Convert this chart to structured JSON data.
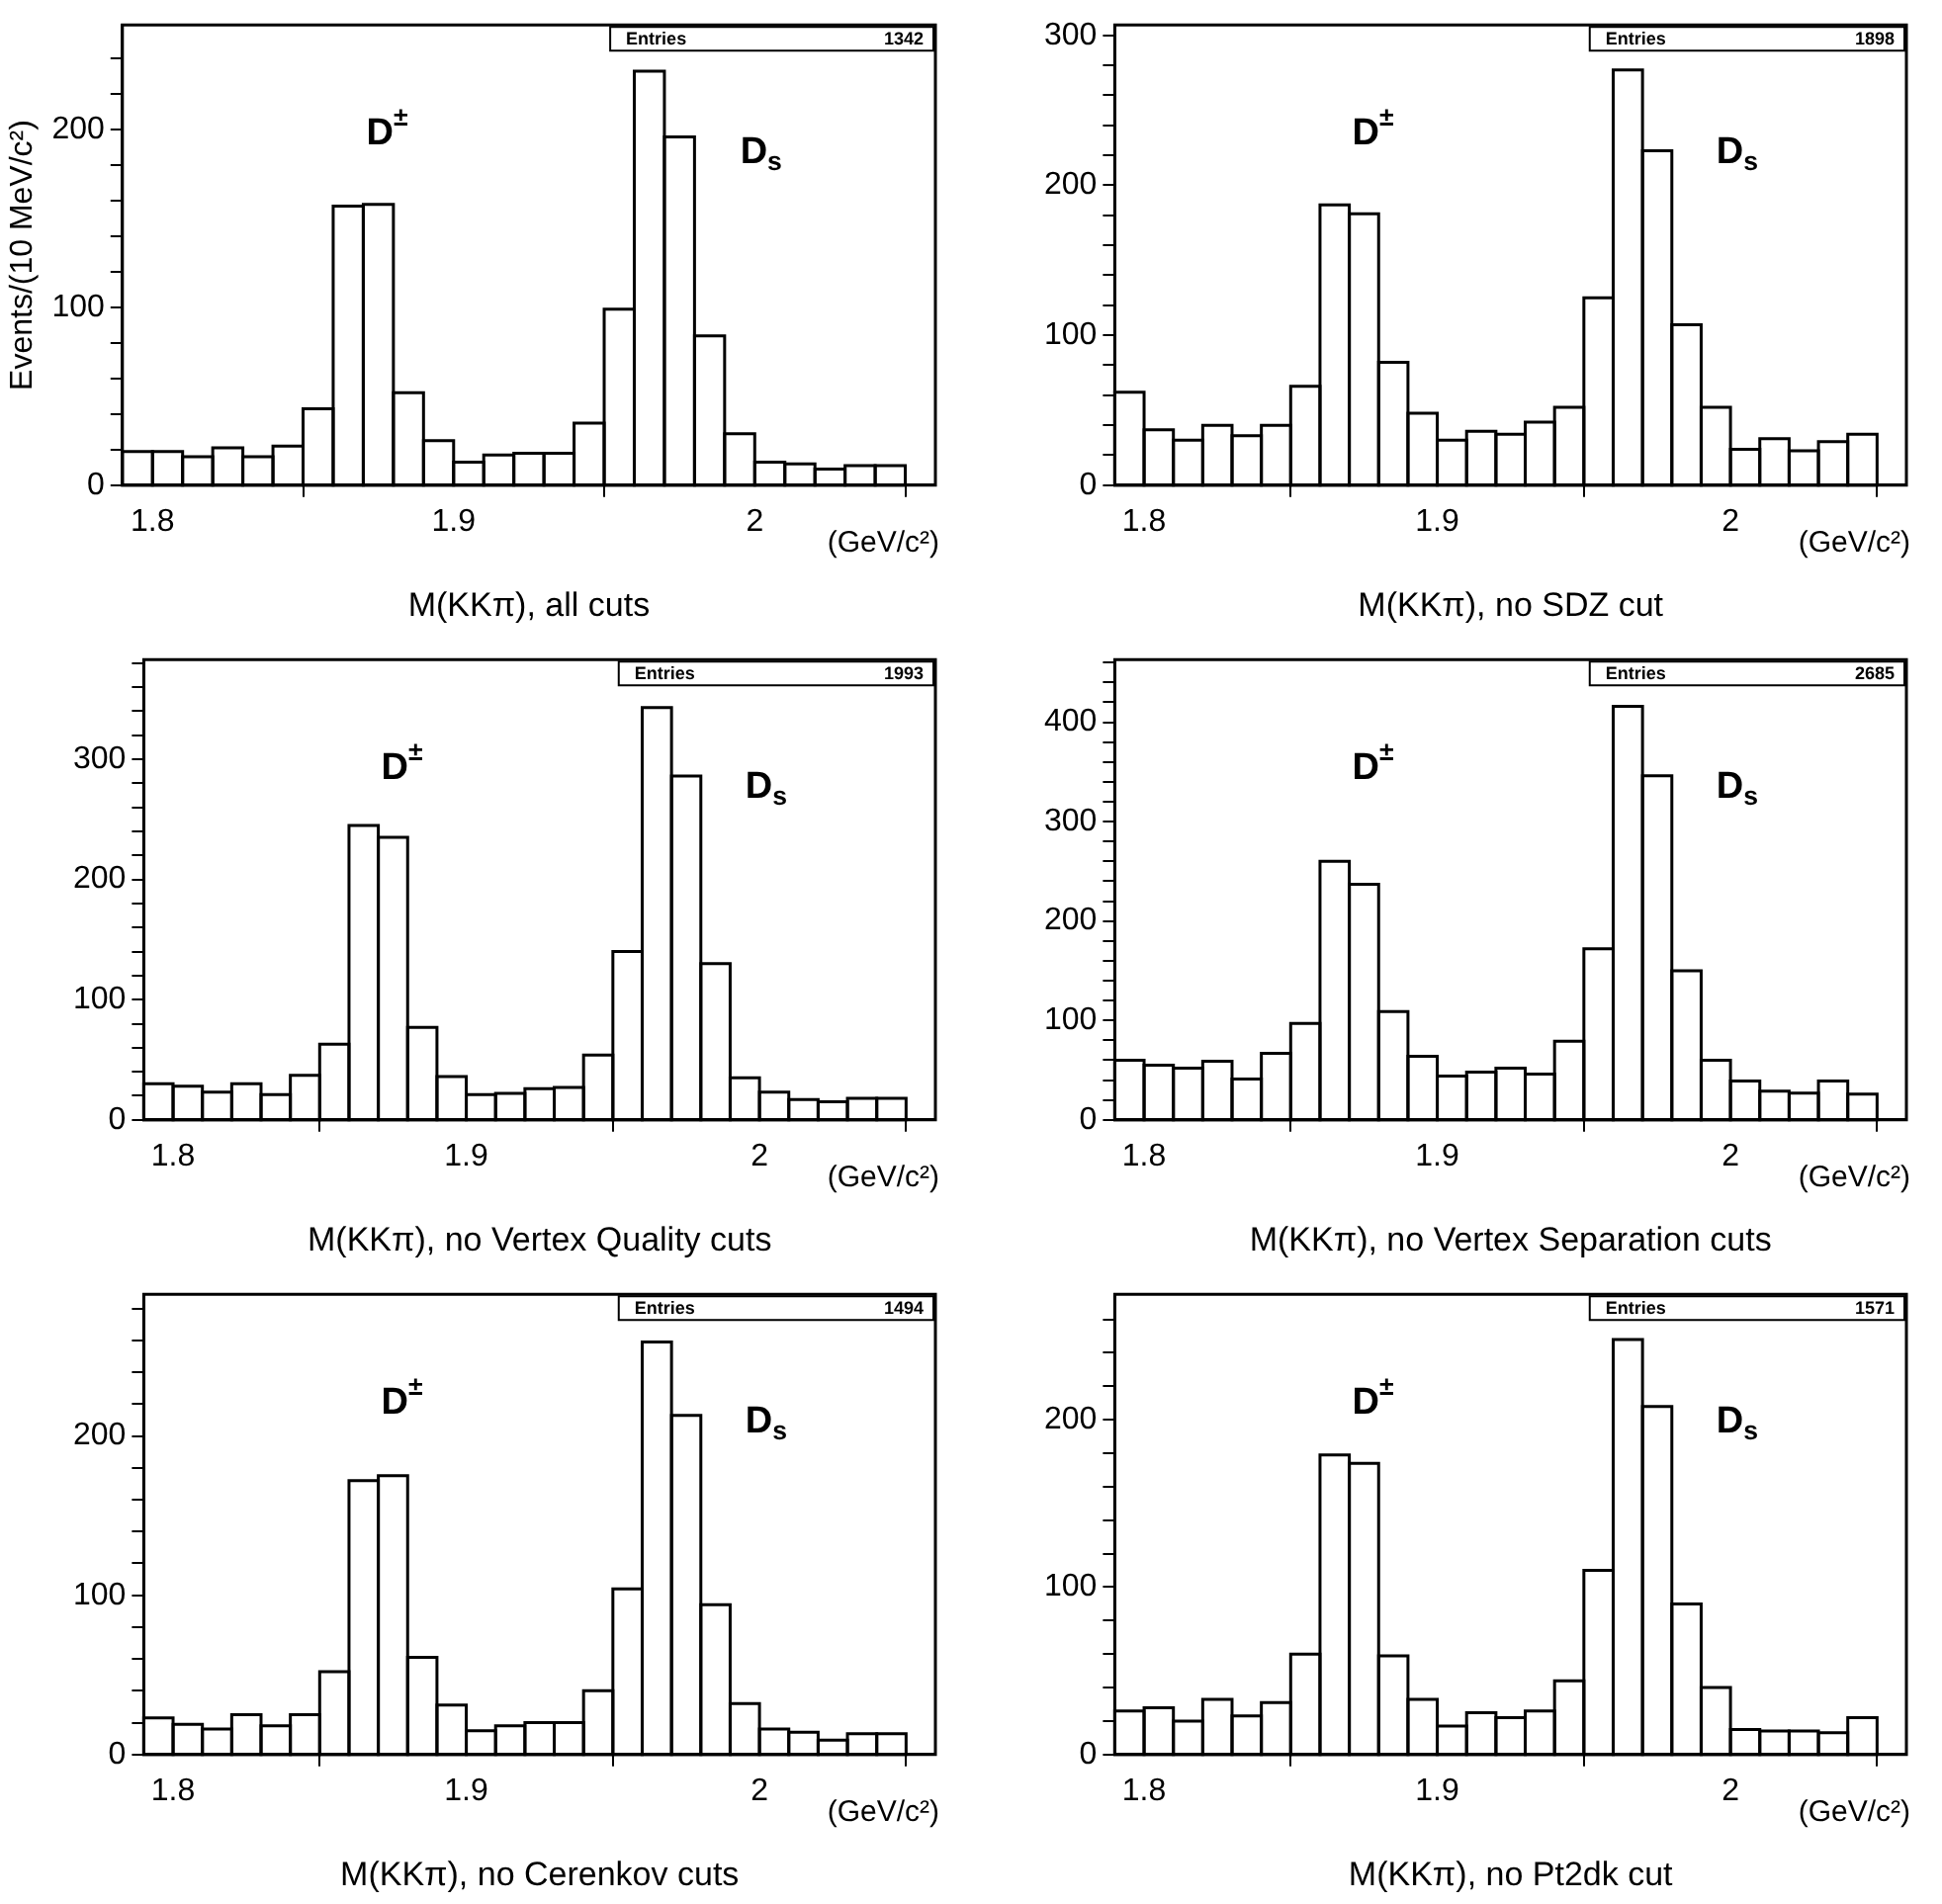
{
  "chart_data": [
    {
      "type": "histogram",
      "xlabel": "M(KKπ), all cuts",
      "ylabel": "Events/(10 MeV/c²)",
      "annotations": [
        "Entries",
        "1342",
        "(GeV/c²)",
        "D$^{±}$",
        "D$_{s}$"
      ],
      "color": "#000000",
      "bins": [
        1.79,
        1.8,
        1.81,
        1.82,
        1.83,
        1.84,
        1.85,
        1.86,
        1.87,
        1.88,
        1.89,
        1.9,
        1.91,
        1.92,
        1.93,
        1.94,
        1.95,
        1.96,
        1.97,
        1.98,
        1.99,
        2.0,
        2.01,
        2.02,
        2.03,
        2.04,
        2.05
      ],
      "values": [
        19,
        19,
        16,
        21,
        16,
        22,
        43,
        157,
        158,
        52,
        25,
        13,
        17,
        18,
        18,
        35,
        99,
        233,
        196,
        84,
        29,
        13,
        12,
        9,
        11,
        11
      ],
      "xlim": [
        1.79,
        2.06
      ],
      "xticks": [
        1.8,
        1.9,
        2
      ],
      "ylim": [
        0,
        259
      ],
      "yticks": [
        0,
        {
          "value": 20,
          "label": null
        },
        {
          "value": 40,
          "label": null
        },
        {
          "value": 60,
          "label": null
        },
        {
          "value": 80,
          "label": null
        },
        100,
        {
          "value": 120,
          "label": null
        },
        {
          "value": 140,
          "label": null
        },
        {
          "value": 160,
          "label": null
        },
        {
          "value": 180,
          "label": null
        },
        200,
        {
          "value": 220,
          "label": null
        },
        {
          "value": 240,
          "label": null
        }
      ]
    },
    {
      "type": "histogram",
      "xlabel": "M(KKπ), no SDZ cut",
      "annotations": [
        "Entries",
        "1898",
        "(GeV/c²)",
        "D$^{±}$",
        "D$_{s}$"
      ],
      "color": "#000000",
      "bins": [
        1.79,
        1.8,
        1.81,
        1.82,
        1.83,
        1.84,
        1.85,
        1.86,
        1.87,
        1.88,
        1.89,
        1.9,
        1.91,
        1.92,
        1.93,
        1.94,
        1.95,
        1.96,
        1.97,
        1.98,
        1.99,
        2.0,
        2.01,
        2.02,
        2.03,
        2.04,
        2.05
      ],
      "values": [
        62,
        37,
        30,
        40,
        33,
        40,
        66,
        187,
        181,
        82,
        48,
        30,
        36,
        34,
        42,
        52,
        125,
        277,
        223,
        107,
        52,
        24,
        31,
        23,
        29,
        34
      ],
      "xlim": [
        1.79,
        2.06
      ],
      "xticks": [
        1.8,
        1.9,
        2
      ],
      "ylim": [
        0,
        307
      ],
      "yticks": [
        0,
        {
          "value": 20,
          "label": null
        },
        {
          "value": 40,
          "label": null
        },
        {
          "value": 60,
          "label": null
        },
        {
          "value": 80,
          "label": null
        },
        100,
        {
          "value": 120,
          "label": null
        },
        {
          "value": 140,
          "label": null
        },
        {
          "value": 160,
          "label": null
        },
        {
          "value": 180,
          "label": null
        },
        200,
        {
          "value": 220,
          "label": null
        },
        {
          "value": 240,
          "label": null
        },
        {
          "value": 260,
          "label": null
        },
        {
          "value": 280,
          "label": null
        },
        300
      ]
    },
    {
      "type": "histogram",
      "xlabel": "M(KKπ), no Vertex Quality cuts",
      "annotations": [
        "Entries",
        "1993",
        "(GeV/c²)",
        "D$^{±}$",
        "D$_{s}$"
      ],
      "color": "#000000",
      "bins": [
        1.79,
        1.8,
        1.81,
        1.82,
        1.83,
        1.84,
        1.85,
        1.86,
        1.87,
        1.88,
        1.89,
        1.9,
        1.91,
        1.92,
        1.93,
        1.94,
        1.95,
        1.96,
        1.97,
        1.98,
        1.99,
        2.0,
        2.01,
        2.02,
        2.03,
        2.04,
        2.05
      ],
      "values": [
        30,
        28,
        23,
        30,
        21,
        37,
        63,
        245,
        235,
        77,
        36,
        21,
        22,
        26,
        27,
        54,
        140,
        343,
        286,
        130,
        35,
        23,
        17,
        15,
        18,
        18
      ],
      "xlim": [
        1.79,
        2.06
      ],
      "xticks": [
        1.8,
        1.9,
        2
      ],
      "ylim": [
        0,
        383
      ],
      "yticks": [
        0,
        {
          "value": 20,
          "label": null
        },
        {
          "value": 40,
          "label": null
        },
        {
          "value": 60,
          "label": null
        },
        {
          "value": 80,
          "label": null
        },
        100,
        {
          "value": 120,
          "label": null
        },
        {
          "value": 140,
          "label": null
        },
        {
          "value": 160,
          "label": null
        },
        {
          "value": 180,
          "label": null
        },
        200,
        {
          "value": 220,
          "label": null
        },
        {
          "value": 240,
          "label": null
        },
        {
          "value": 260,
          "label": null
        },
        {
          "value": 280,
          "label": null
        },
        300,
        {
          "value": 320,
          "label": null
        },
        {
          "value": 340,
          "label": null
        },
        {
          "value": 360,
          "label": null
        },
        {
          "value": 380,
          "label": null
        }
      ]
    },
    {
      "type": "histogram",
      "xlabel": "M(KKπ), no Vertex Separation cuts",
      "annotations": [
        "Entries",
        "2685",
        "(GeV/c²)",
        "D$^{±}$",
        "D$_{s}$"
      ],
      "color": "#000000",
      "bins": [
        1.79,
        1.8,
        1.81,
        1.82,
        1.83,
        1.84,
        1.85,
        1.86,
        1.87,
        1.88,
        1.89,
        1.9,
        1.91,
        1.92,
        1.93,
        1.94,
        1.95,
        1.96,
        1.97,
        1.98,
        1.99,
        2.0,
        2.01,
        2.02,
        2.03,
        2.04,
        2.05
      ],
      "values": [
        60,
        55,
        52,
        59,
        41,
        67,
        97,
        260,
        237,
        109,
        64,
        44,
        48,
        52,
        46,
        79,
        172,
        416,
        346,
        150,
        60,
        39,
        29,
        27,
        39,
        26
      ],
      "xlim": [
        1.79,
        2.06
      ],
      "xticks": [
        1.8,
        1.9,
        2
      ],
      "ylim": [
        0,
        463
      ],
      "yticks": [
        0,
        {
          "value": 20,
          "label": null
        },
        {
          "value": 40,
          "label": null
        },
        {
          "value": 60,
          "label": null
        },
        {
          "value": 80,
          "label": null
        },
        100,
        {
          "value": 120,
          "label": null
        },
        {
          "value": 140,
          "label": null
        },
        {
          "value": 160,
          "label": null
        },
        {
          "value": 180,
          "label": null
        },
        200,
        {
          "value": 220,
          "label": null
        },
        {
          "value": 240,
          "label": null
        },
        {
          "value": 260,
          "label": null
        },
        {
          "value": 280,
          "label": null
        },
        300,
        {
          "value": 320,
          "label": null
        },
        {
          "value": 340,
          "label": null
        },
        {
          "value": 360,
          "label": null
        },
        {
          "value": 380,
          "label": null
        },
        400,
        {
          "value": 420,
          "label": null
        },
        {
          "value": 440,
          "label": null
        },
        {
          "value": 460,
          "label": null
        }
      ]
    },
    {
      "type": "histogram",
      "xlabel": "M(KKπ), no Cerenkov cuts",
      "annotations": [
        "Entries",
        "1494",
        "(GeV/c²)",
        "D$^{±}$",
        "D$_{s}$"
      ],
      "color": "#000000",
      "bins": [
        1.79,
        1.8,
        1.81,
        1.82,
        1.83,
        1.84,
        1.85,
        1.86,
        1.87,
        1.88,
        1.89,
        1.9,
        1.91,
        1.92,
        1.93,
        1.94,
        1.95,
        1.96,
        1.97,
        1.98,
        1.99,
        2.0,
        2.01,
        2.02,
        2.03,
        2.04,
        2.05
      ],
      "values": [
        23,
        19,
        16,
        25,
        18,
        25,
        52,
        172,
        175,
        61,
        31,
        15,
        18,
        20,
        20,
        40,
        104,
        259,
        213,
        94,
        32,
        16,
        14,
        9,
        13,
        13
      ],
      "xlim": [
        1.79,
        2.06
      ],
      "xticks": [
        1.8,
        1.9,
        2
      ],
      "ylim": [
        0,
        289
      ],
      "yticks": [
        0,
        {
          "value": 20,
          "label": null
        },
        {
          "value": 40,
          "label": null
        },
        {
          "value": 60,
          "label": null
        },
        {
          "value": 80,
          "label": null
        },
        100,
        {
          "value": 120,
          "label": null
        },
        {
          "value": 140,
          "label": null
        },
        {
          "value": 160,
          "label": null
        },
        {
          "value": 180,
          "label": null
        },
        200,
        {
          "value": 220,
          "label": null
        },
        {
          "value": 240,
          "label": null
        },
        {
          "value": 260,
          "label": null
        },
        {
          "value": 280,
          "label": null
        }
      ]
    },
    {
      "type": "histogram",
      "xlabel": "M(KKπ), no Pt2dk cut",
      "annotations": [
        "Entries",
        "1571",
        "(GeV/c²)",
        "D$^{±}$",
        "D$_{s}$"
      ],
      "color": "#000000",
      "bins": [
        1.79,
        1.8,
        1.81,
        1.82,
        1.83,
        1.84,
        1.85,
        1.86,
        1.87,
        1.88,
        1.89,
        1.9,
        1.91,
        1.92,
        1.93,
        1.94,
        1.95,
        1.96,
        1.97,
        1.98,
        1.99,
        2.0,
        2.01,
        2.02,
        2.03,
        2.04,
        2.05
      ],
      "values": [
        26,
        28,
        20,
        33,
        23,
        31,
        60,
        179,
        174,
        59,
        33,
        17,
        25,
        22,
        26,
        44,
        110,
        248,
        208,
        90,
        40,
        15,
        14,
        14,
        13,
        22
      ],
      "xlim": [
        1.79,
        2.06
      ],
      "xticks": [
        1.8,
        1.9,
        2
      ],
      "ylim": [
        0,
        275
      ],
      "yticks": [
        0,
        {
          "value": 20,
          "label": null
        },
        {
          "value": 40,
          "label": null
        },
        {
          "value": 60,
          "label": null
        },
        {
          "value": 80,
          "label": null
        },
        100,
        {
          "value": 120,
          "label": null
        },
        {
          "value": 140,
          "label": null
        },
        {
          "value": 160,
          "label": null
        },
        {
          "value": 180,
          "label": null
        },
        200,
        {
          "value": 220,
          "label": null
        },
        {
          "value": 240,
          "label": null
        },
        {
          "value": 260,
          "label": null
        }
      ]
    }
  ]
}
